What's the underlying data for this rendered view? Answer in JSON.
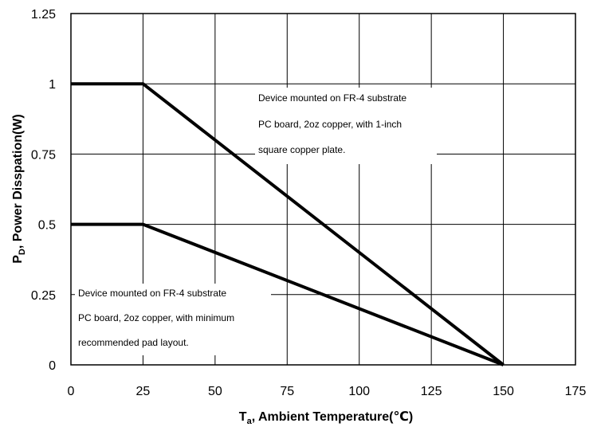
{
  "chart_data": {
    "type": "line",
    "xlabel_main": "T",
    "xlabel_sub": "a",
    "xlabel_rest": ", Ambient Temperature(℃)",
    "ylabel_main": "P",
    "ylabel_sub": "D",
    "ylabel_rest": ", Power Disspation(W)",
    "xlim": [
      0,
      175
    ],
    "ylim": [
      0,
      1.25
    ],
    "xticks": [
      0,
      25,
      50,
      75,
      100,
      125,
      150,
      175
    ],
    "xtick_labels": [
      "0",
      "25",
      "50",
      "75",
      "100",
      "125",
      "150",
      "175"
    ],
    "yticks": [
      0,
      0.25,
      0.5,
      0.75,
      1,
      1.25
    ],
    "ytick_labels": [
      "0",
      "0.25",
      "0.5",
      "0.75",
      "1",
      "1.25"
    ],
    "grid": true,
    "series": [
      {
        "x": [
          0,
          25,
          150
        ],
        "y": [
          1,
          1,
          0
        ],
        "color": "#000000"
      },
      {
        "x": [
          0,
          25,
          150
        ],
        "y": [
          0.5,
          0.5,
          0
        ],
        "color": "#000000"
      }
    ],
    "annotations": [
      {
        "lines": [
          "Device mounted on FR-4 substrate",
          "PC board, 2oz copper, with 1-inch",
          "square copper plate."
        ]
      },
      {
        "lines": [
          "Device mounted on FR-4 substrate",
          "PC board, 2oz copper, with minimum",
          "recommended pad layout."
        ]
      }
    ]
  }
}
